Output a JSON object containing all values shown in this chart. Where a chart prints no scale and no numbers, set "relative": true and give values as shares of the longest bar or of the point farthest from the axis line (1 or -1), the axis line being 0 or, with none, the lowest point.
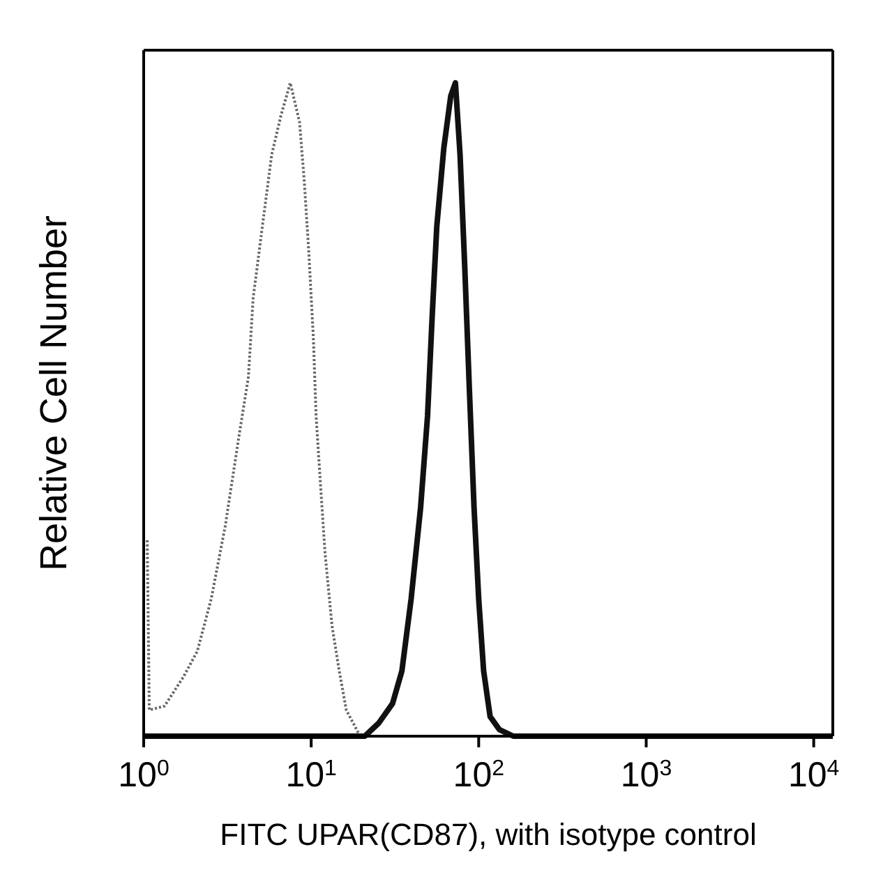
{
  "chart_data": {
    "type": "line",
    "xlabel": "FITC UPAR(CD87), with isotype control",
    "ylabel": "Relative Cell Number",
    "relative": true,
    "log": "x",
    "xlim": [
      1,
      13000
    ],
    "xticks": [
      {
        "value": 1,
        "label": "10$^{0}$"
      },
      {
        "value": 10,
        "label": "10$^{1}$"
      },
      {
        "value": 100,
        "label": "10$^{2}$"
      },
      {
        "value": 1000,
        "label": "10$^{3}$"
      },
      {
        "value": 10000,
        "label": "10$^{4}$"
      }
    ],
    "tick_labels": "x",
    "marker": "none",
    "series": [
      {
        "color": "#666666",
        "line_style": "dotted",
        "x": [
          1.05,
          1.08,
          1.33,
          1.72,
          2.09,
          2.53,
          3.06,
          3.71,
          4.22,
          4.5,
          5.11,
          5.81,
          6.6,
          7.5,
          8.52,
          9.09,
          9.68,
          10.3,
          10.7,
          11.4,
          12.1,
          13.3,
          14.7,
          16.2,
          19.6,
          27
        ],
        "values": [
          0.3,
          0.04,
          0.046,
          0.09,
          0.13,
          0.21,
          0.32,
          0.46,
          0.55,
          0.67,
          0.78,
          0.89,
          0.95,
          1,
          0.94,
          0.85,
          0.74,
          0.61,
          0.49,
          0.38,
          0.28,
          0.17,
          0.1,
          0.04,
          0,
          0
        ]
      },
      {
        "color": "#111111",
        "line_style": "solid",
        "x": [
          1,
          20.9,
          25.3,
          30.6,
          34.8,
          39.5,
          45,
          49.5,
          52.7,
          56.2,
          61.9,
          68.1,
          72.6,
          77.4,
          82.5,
          88,
          93.8,
          100,
          107,
          117,
          133,
          161,
          13000
        ],
        "values": [
          0,
          0,
          0.02,
          0.05,
          0.1,
          0.21,
          0.35,
          0.49,
          0.64,
          0.78,
          0.9,
          0.98,
          1,
          0.89,
          0.72,
          0.53,
          0.35,
          0.21,
          0.1,
          0.03,
          0.01,
          0,
          0
        ]
      }
    ]
  }
}
